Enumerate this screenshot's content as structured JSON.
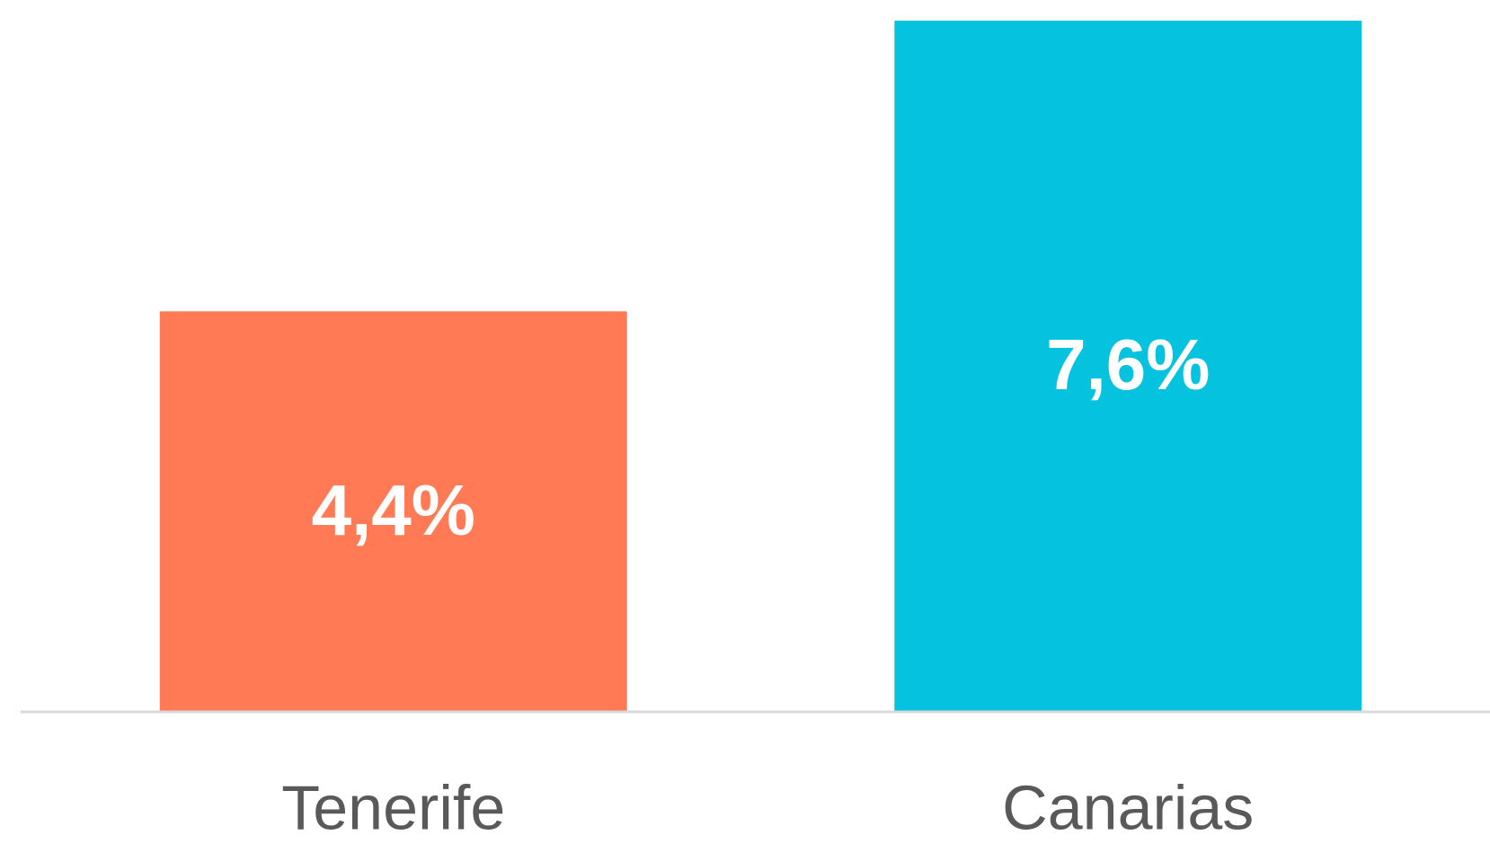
{
  "chart_data": {
    "type": "bar",
    "categories": [
      "Tenerife",
      "Canarias"
    ],
    "values": [
      4.4,
      7.6
    ],
    "value_labels": [
      "4,4%",
      "7,6%"
    ],
    "colors": [
      "#ff7a55",
      "#05c3df"
    ],
    "ylim": [
      0,
      7.6
    ]
  }
}
